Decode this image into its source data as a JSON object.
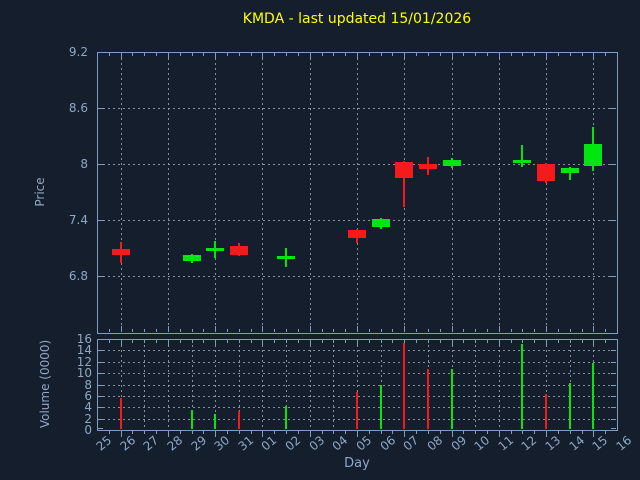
{
  "title": {
    "text": "KMDA - last updated 15/01/2026"
  },
  "colors": {
    "background": "#141e2c",
    "axis": "#7e9dc2",
    "label": "#8ea8c6",
    "grid": "#aab2bc",
    "title": "#ffff00",
    "up": "#00e60e",
    "down": "#f31b1b"
  },
  "chart_data": {
    "type": "candlestick",
    "title": "KMDA - last updated 15/01/2026",
    "xlabel": "Day",
    "x_categories": [
      "25",
      "26",
      "27",
      "28",
      "29",
      "30",
      "31",
      "01",
      "02",
      "03",
      "04",
      "05",
      "06",
      "07",
      "08",
      "09",
      "10",
      "11",
      "12",
      "13",
      "14",
      "15",
      "16"
    ],
    "grid": "dashed gray; price panel vertical gridlines every 2nd day, volume panel every day",
    "price_panel": {
      "ylabel": "Price",
      "ytick_labels": [
        "9.2",
        "8.6",
        "8",
        "7.4",
        "6.8"
      ],
      "ytick_values": [
        9.2,
        8.6,
        8,
        7.4,
        6.8
      ],
      "ylim": [
        6.19,
        9.2
      ]
    },
    "volume_panel": {
      "ylabel": "Volume (0000)",
      "ytick_labels": [
        "16",
        "14",
        "12",
        "10",
        "8",
        "6",
        "4",
        "2",
        "0"
      ],
      "ytick_values": [
        16,
        14,
        12,
        10,
        8,
        6,
        4,
        2,
        0
      ],
      "ylim": [
        0,
        16
      ]
    },
    "candles": [
      {
        "day": "26",
        "open": 7.09,
        "high": 7.16,
        "low": 6.94,
        "close": 7.03,
        "volume": 5.7,
        "direction": "down"
      },
      {
        "day": "29",
        "open": 6.96,
        "high": 7.04,
        "low": 6.94,
        "close": 7.03,
        "volume": 3.6,
        "direction": "up"
      },
      {
        "day": "30",
        "open": 7.09,
        "high": 7.17,
        "low": 6.99,
        "close": 7.09,
        "volume": 2.9,
        "direction": "up"
      },
      {
        "day": "31",
        "open": 7.12,
        "high": 7.15,
        "low": 7.01,
        "close": 7.03,
        "volume": 3.4,
        "direction": "down"
      },
      {
        "day": "02",
        "open": 7.0,
        "high": 7.1,
        "low": 6.9,
        "close": 7.0,
        "volume": 4.2,
        "direction": "up"
      },
      {
        "day": "05",
        "open": 7.29,
        "high": 7.3,
        "low": 7.15,
        "close": 7.21,
        "volume": 6.7,
        "direction": "down"
      },
      {
        "day": "06",
        "open": 7.33,
        "high": 7.42,
        "low": 7.3,
        "close": 7.41,
        "volume": 7.9,
        "direction": "up"
      },
      {
        "day": "07",
        "open": 8.02,
        "high": 8.03,
        "low": 7.54,
        "close": 7.85,
        "volume": 15.3,
        "direction": "down"
      },
      {
        "day": "08",
        "open": 8.0,
        "high": 8.07,
        "low": 7.88,
        "close": 7.95,
        "volume": 10.7,
        "direction": "down"
      },
      {
        "day": "09",
        "open": 7.98,
        "high": 8.06,
        "low": 7.96,
        "close": 8.04,
        "volume": 10.8,
        "direction": "up"
      },
      {
        "day": "12",
        "open": 8.03,
        "high": 8.2,
        "low": 7.97,
        "close": 8.03,
        "volume": 15.2,
        "direction": "up"
      },
      {
        "day": "13",
        "open": 8.0,
        "high": 8.01,
        "low": 7.8,
        "close": 7.82,
        "volume": 6.3,
        "direction": "down"
      },
      {
        "day": "14",
        "open": 7.9,
        "high": 7.97,
        "low": 7.83,
        "close": 7.96,
        "volume": 8.3,
        "direction": "up"
      },
      {
        "day": "15",
        "open": 7.98,
        "high": 8.4,
        "low": 7.93,
        "close": 8.21,
        "volume": 11.8,
        "direction": "up"
      }
    ]
  }
}
